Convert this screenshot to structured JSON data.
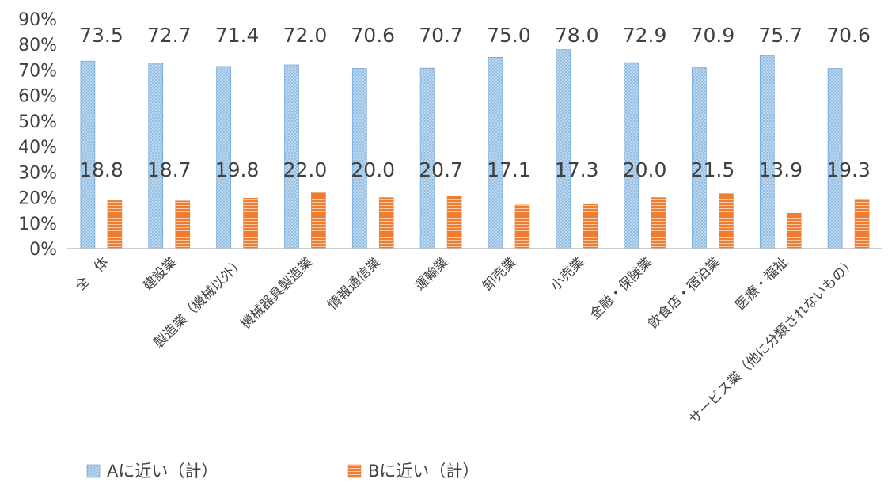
{
  "chart_data": {
    "type": "bar",
    "categories": [
      "全　体",
      "建設業",
      "製造業（機械以外）",
      "機械器具製造業",
      "情報通信業",
      "運輸業",
      "卸売業",
      "小売業",
      "金融・保険業",
      "飲食店・宿泊業",
      "医療・福祉",
      "サービス業（他に分類されないもの）"
    ],
    "series": [
      {
        "name": "Aに近い（計）",
        "values": [
          73.5,
          72.7,
          71.4,
          72.0,
          70.6,
          70.7,
          75.0,
          78.0,
          72.9,
          70.9,
          75.7,
          70.6
        ],
        "color": "#9DC3E6"
      },
      {
        "name": "Bに近い（計）",
        "values": [
          18.8,
          18.7,
          19.8,
          22.0,
          20.0,
          20.7,
          17.1,
          17.3,
          20.0,
          21.5,
          13.9,
          19.3
        ],
        "color": "#ED7D31"
      }
    ],
    "ylim": [
      0,
      90
    ],
    "yticks": [
      "0%",
      "10%",
      "20%",
      "30%",
      "40%",
      "50%",
      "60%",
      "70%",
      "80%",
      "90%"
    ],
    "legend_position": "bottom-left",
    "grid": false,
    "title": "",
    "xlabel": "",
    "ylabel": ""
  }
}
